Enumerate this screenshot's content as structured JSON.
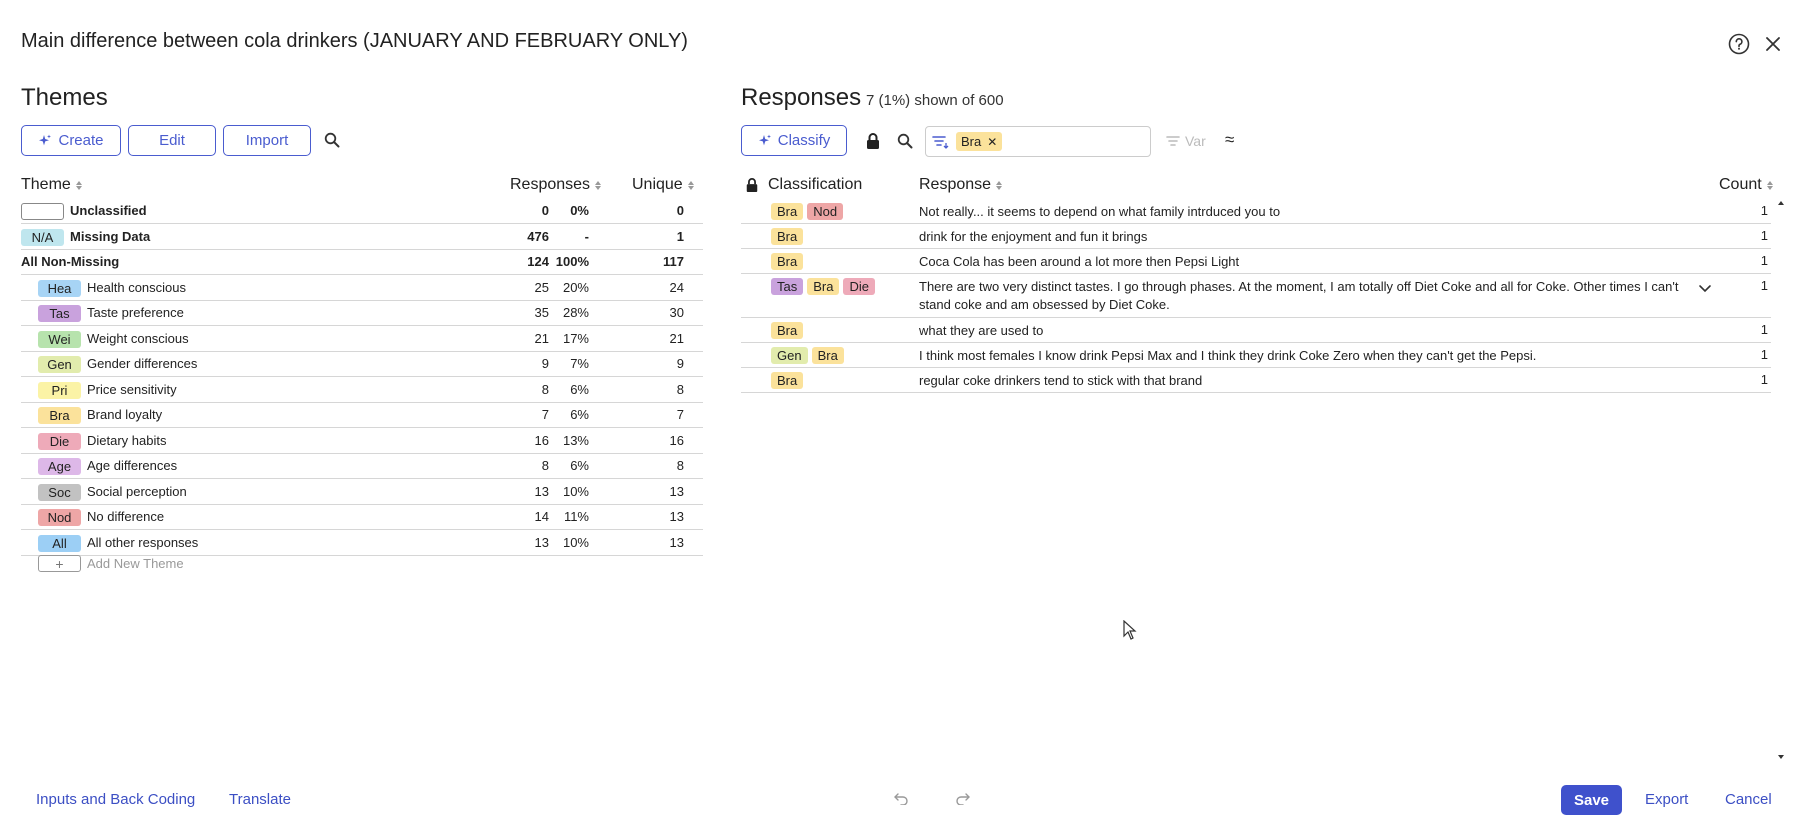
{
  "dialog": {
    "title": "Main difference between cola drinkers (JANUARY AND FEBRUARY ONLY)"
  },
  "themes": {
    "title": "Themes",
    "buttons": {
      "create": "Create",
      "edit": "Edit",
      "import": "Import"
    },
    "headers": {
      "theme": "Theme",
      "responses": "Responses",
      "unique": "Unique"
    },
    "rows": [
      {
        "tag": "",
        "label": "Unclassified",
        "count": "0",
        "pct": "0%",
        "unique": "0",
        "bold": true,
        "tag_bg": "#ffffff",
        "tag_border": "#888888"
      },
      {
        "tag": "N/A",
        "label": "Missing Data",
        "count": "476",
        "pct": "-",
        "unique": "1",
        "bold": true,
        "tag_bg": "#bfe6ee"
      },
      {
        "tag": "",
        "label": "All Non-Missing",
        "count": "124",
        "pct": "100%",
        "unique": "117",
        "bold": true
      },
      {
        "tag": "Hea",
        "label": "Health conscious",
        "count": "25",
        "pct": "20%",
        "unique": "24",
        "tag_bg": "#a7d4f5"
      },
      {
        "tag": "Tas",
        "label": "Taste preference",
        "count": "35",
        "pct": "28%",
        "unique": "30",
        "tag_bg": "#c9a2dd"
      },
      {
        "tag": "Wei",
        "label": "Weight conscious",
        "count": "21",
        "pct": "17%",
        "unique": "21",
        "tag_bg": "#b7e3ad"
      },
      {
        "tag": "Gen",
        "label": "Gender differences",
        "count": "9",
        "pct": "7%",
        "unique": "9",
        "tag_bg": "#e2ecad"
      },
      {
        "tag": "Pri",
        "label": "Price sensitivity",
        "count": "8",
        "pct": "6%",
        "unique": "8",
        "tag_bg": "#fbf3a6"
      },
      {
        "tag": "Bra",
        "label": "Brand loyalty",
        "count": "7",
        "pct": "6%",
        "unique": "7",
        "tag_bg": "#fbe29b"
      },
      {
        "tag": "Die",
        "label": "Dietary habits",
        "count": "16",
        "pct": "13%",
        "unique": "16",
        "tag_bg": "#eeaab9"
      },
      {
        "tag": "Age",
        "label": "Age differences",
        "count": "8",
        "pct": "6%",
        "unique": "8",
        "tag_bg": "#ddb8e8"
      },
      {
        "tag": "Soc",
        "label": "Social perception",
        "count": "13",
        "pct": "10%",
        "unique": "13",
        "tag_bg": "#c2c2c2"
      },
      {
        "tag": "Nod",
        "label": "No difference",
        "count": "14",
        "pct": "11%",
        "unique": "13",
        "tag_bg": "#eea6a6"
      },
      {
        "tag": "All",
        "label": "All other responses",
        "count": "13",
        "pct": "10%",
        "unique": "13",
        "tag_bg": "#9ccff5"
      }
    ],
    "add_new": "Add New Theme"
  },
  "responses": {
    "title": "Responses",
    "subtitle": "7 (1%) shown of 600",
    "classify": "Classify",
    "filter_chip": "Bra",
    "var_label": "Var",
    "headers": {
      "classification": "Classification",
      "response": "Response",
      "count": "Count"
    },
    "rows": [
      {
        "tags": [
          {
            "t": "Bra",
            "c": "#fbe29b"
          },
          {
            "t": "Nod",
            "c": "#eea6a6"
          }
        ],
        "text": "Not really... it seems to depend on what family intrduced you to",
        "count": "1"
      },
      {
        "tags": [
          {
            "t": "Bra",
            "c": "#fbe29b"
          }
        ],
        "text": "drink for the enjoyment and fun it brings",
        "count": "1"
      },
      {
        "tags": [
          {
            "t": "Bra",
            "c": "#fbe29b"
          }
        ],
        "text": "Coca Cola has been around a lot more then Pepsi Light",
        "count": "1"
      },
      {
        "tags": [
          {
            "t": "Tas",
            "c": "#c9a2dd"
          },
          {
            "t": "Bra",
            "c": "#fbe29b"
          },
          {
            "t": "Die",
            "c": "#eeaab9"
          }
        ],
        "text": "There are two very distinct tastes. I go through phases. At the moment, I am totally off Diet Coke and all for Coke. Other times I can't stand coke and am obsessed by Diet Coke.",
        "count": "1",
        "expandable": true
      },
      {
        "tags": [
          {
            "t": "Bra",
            "c": "#fbe29b"
          }
        ],
        "text": "what they are used to",
        "count": "1"
      },
      {
        "tags": [
          {
            "t": "Gen",
            "c": "#e2ecad"
          },
          {
            "t": "Bra",
            "c": "#fbe29b"
          }
        ],
        "text": "I think most females I know drink Pepsi Max and I think they drink Coke Zero when they can't get the Pepsi.",
        "count": "1"
      },
      {
        "tags": [
          {
            "t": "Bra",
            "c": "#fbe29b"
          }
        ],
        "text": "regular coke drinkers tend to stick with that brand",
        "count": "1"
      }
    ]
  },
  "footer": {
    "inputs_back_coding": "Inputs and Back Coding",
    "translate": "Translate",
    "save": "Save",
    "export": "Export",
    "cancel": "Cancel"
  },
  "colors": {
    "accent": "#4a5ccf",
    "save_bg": "#3f51cc"
  }
}
